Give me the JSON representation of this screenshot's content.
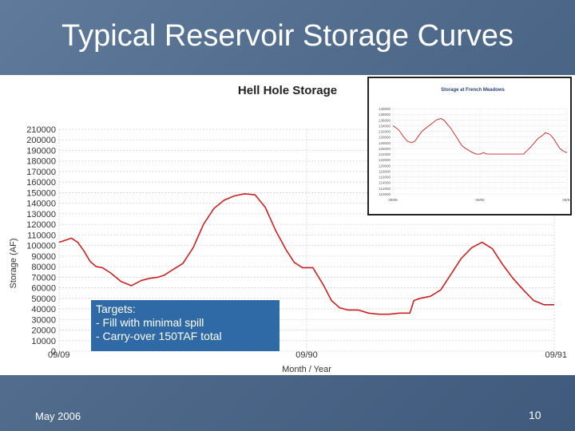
{
  "slide": {
    "title": "Typical Reservoir Storage Curves",
    "footer_date": "May 2006",
    "page_number": "10"
  },
  "targets": {
    "heading": "Targets:",
    "items": [
      "- Fill with minimal spill",
      "- Carry-over 150TAF total"
    ]
  },
  "colors": {
    "line": "#cc2020",
    "grid": "#cfcfcf",
    "background": "#4f6a8b",
    "box": "#2f6aa6"
  },
  "chart_data": [
    {
      "type": "line",
      "title": "Hell Hole Storage",
      "xlabel": "Month / Year",
      "ylabel": "Storage (AF)",
      "ylim": [
        0,
        210000
      ],
      "yticks": [
        0,
        10000,
        20000,
        30000,
        40000,
        50000,
        60000,
        70000,
        80000,
        90000,
        100000,
        110000,
        120000,
        130000,
        140000,
        150000,
        160000,
        170000,
        180000,
        190000,
        200000,
        210000
      ],
      "ytick_labels": [
        "0",
        "10000",
        "20000",
        "30000",
        "40000",
        "50000",
        "60000",
        "70000",
        "80000",
        "90000",
        "100000",
        "110000",
        "120000",
        "130000",
        "140000",
        "150000",
        "160000",
        "170000",
        "180000",
        "190000",
        "200000",
        "210000"
      ],
      "xlim": [
        0,
        24
      ],
      "xticks": [
        0,
        12,
        24
      ],
      "xtick_labels": [
        "09/09",
        "09/90",
        "09/91"
      ],
      "grid": true,
      "series": [
        {
          "x": [
            0,
            0.3,
            0.6,
            0.9,
            1.2,
            1.5,
            1.8,
            2.1,
            2.5,
            3.0,
            3.5,
            4.0,
            4.4,
            4.8,
            5.1,
            5.5,
            6.0,
            6.5,
            7.0,
            7.5,
            8.0,
            8.5,
            9.0,
            9.5,
            10.0,
            10.5,
            11.0,
            11.4,
            11.8,
            12.3,
            12.8,
            13.2,
            13.6,
            14.0,
            14.5,
            15.0,
            15.5,
            16.0,
            16.5,
            17.0,
            17.2,
            17.5,
            18.0,
            18.5,
            19.0,
            19.5,
            20.0,
            20.5,
            21.0,
            21.5,
            22.0,
            22.5,
            23.0,
            23.5,
            24.0
          ],
          "y": [
            103000,
            105000,
            107000,
            103000,
            95000,
            85000,
            80000,
            79000,
            74000,
            66000,
            62000,
            67000,
            69000,
            70000,
            72000,
            77000,
            83000,
            98000,
            120000,
            135000,
            143000,
            147000,
            149000,
            148000,
            136000,
            114000,
            96000,
            84000,
            79000,
            79000,
            63000,
            48000,
            41000,
            39000,
            39000,
            36000,
            35000,
            35000,
            36000,
            36000,
            48000,
            50000,
            52000,
            58000,
            73000,
            88000,
            98000,
            103000,
            97000,
            82000,
            69000,
            58000,
            48000,
            44000,
            44000
          ]
        }
      ]
    },
    {
      "type": "line",
      "title": "Storage at French Meadows",
      "ylim": [
        110000,
        140000
      ],
      "ytick_labels": [
        "140000",
        "138000",
        "136000",
        "134000",
        "132000",
        "130000",
        "128000",
        "126000",
        "124000",
        "122000",
        "120000",
        "118000",
        "116000",
        "114000",
        "112000",
        "110000"
      ],
      "xtick_labels": [
        "09/89",
        "09/90",
        "09/91"
      ],
      "grid": true,
      "series": [
        {
          "x": [
            0,
            0.8,
            1.5,
            2.0,
            2.6,
            3.0,
            4.0,
            5.0,
            6.0,
            6.6,
            7.0,
            7.5,
            8.0,
            8.5,
            9.0,
            9.5,
            10.0,
            11.0,
            11.5,
            12.0,
            12.5,
            13.0,
            14.0,
            14.6,
            15.0,
            16.0,
            17.0,
            18.0,
            19.0,
            20.0,
            20.6,
            21.0,
            21.6,
            22.0,
            22.5,
            23.0,
            23.5,
            24.0
          ],
          "y": [
            134000,
            132500,
            130000,
            128500,
            128000,
            128500,
            132000,
            134000,
            136000,
            136500,
            136000,
            134500,
            133000,
            131000,
            129000,
            127000,
            126000,
            124500,
            124000,
            124000,
            124500,
            124000,
            124000,
            124000,
            124000,
            124000,
            124000,
            124000,
            126500,
            129500,
            130500,
            131500,
            131000,
            130000,
            128000,
            126000,
            125000,
            124500
          ]
        }
      ]
    }
  ]
}
